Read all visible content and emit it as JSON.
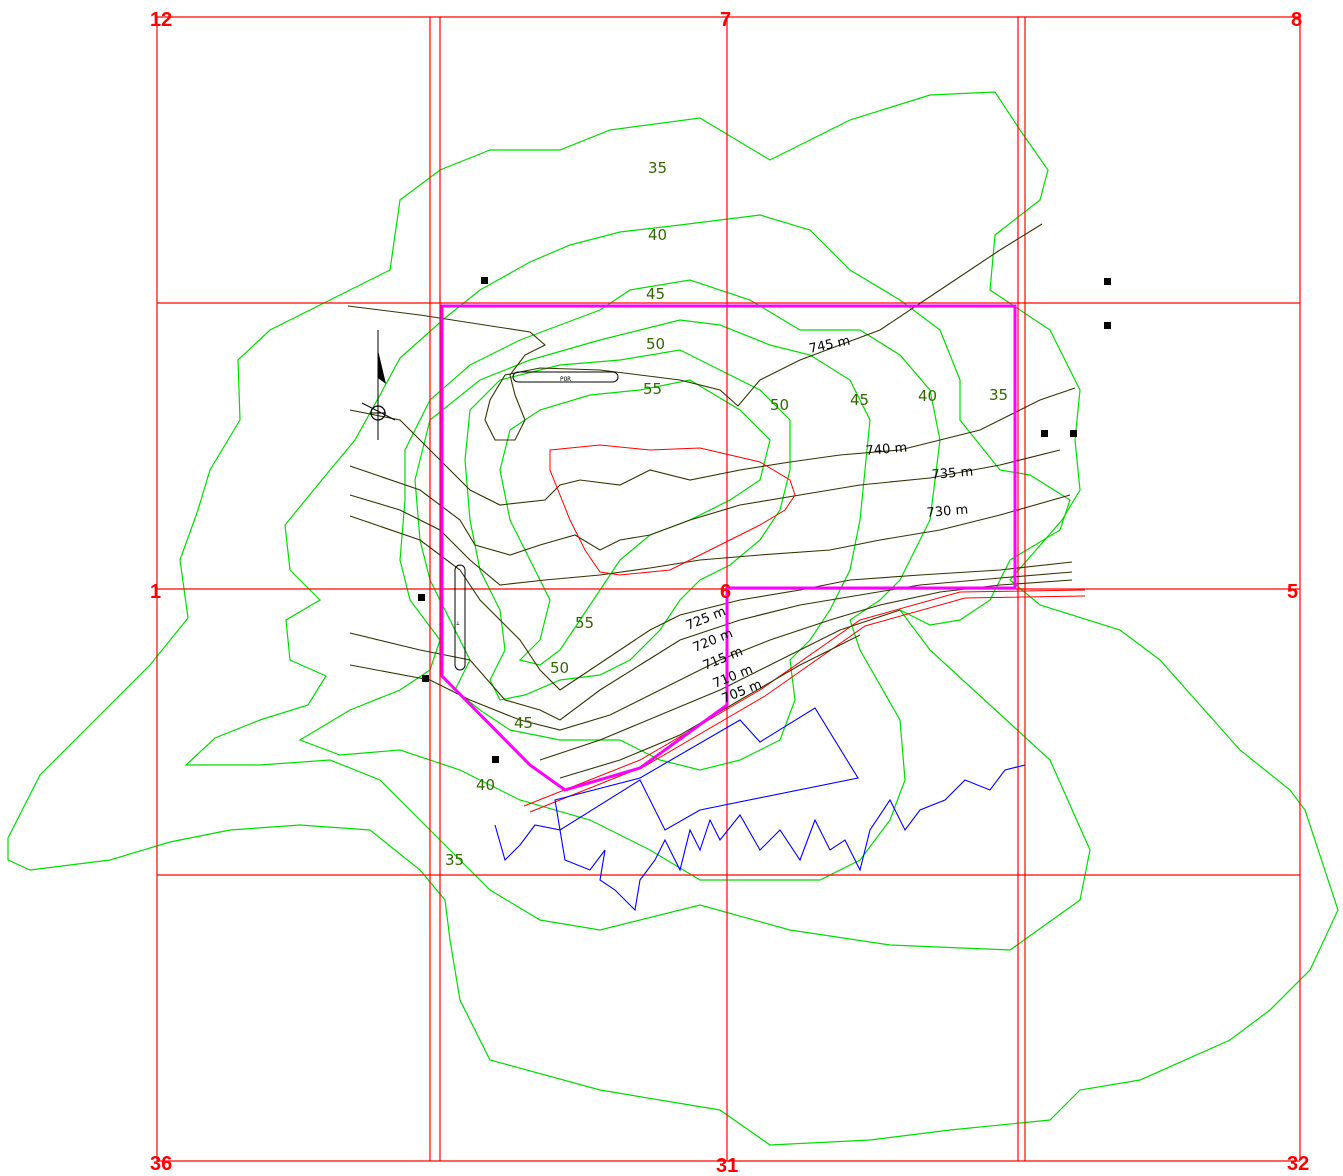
{
  "colors": {
    "section_grid": "#ff0000",
    "noise_contour": "#00dd00",
    "noise_label": "#336600",
    "site_boundary": "#ff00ff",
    "elevation_contour": "#333300",
    "watercourse": "#0000ff",
    "structure": "#000000"
  },
  "section_numbers": {
    "top_left": "12",
    "top_center": "7",
    "top_right": "8",
    "mid_left": "1",
    "center": "6",
    "mid_right": "5",
    "bottom_left": "36",
    "bottom_center": "31",
    "bottom_right": "32"
  },
  "noise_contour_labels": {
    "n35_top": "35",
    "n40_top": "40",
    "n45_top": "45",
    "n50_top": "50",
    "n55_top": "55",
    "n50_mid": "50",
    "n45_mid": "45",
    "n40_right": "40",
    "n35_right": "35",
    "n55_bottom": "55",
    "n50_bottom": "50",
    "n45_bottom": "45",
    "n40_bottom": "40",
    "n35_bottom": "35"
  },
  "elevation_labels": {
    "e745": "745 m",
    "e740": "740 m",
    "e735": "735 m",
    "e730": "730 m",
    "e725": "725 m",
    "e720": "720 m",
    "e715": "715 m",
    "e710": "710 m",
    "e705": "705 m"
  },
  "feature_label": "POR",
  "icons": {
    "north_arrow": "north-arrow-icon",
    "reference_point": "crosshair-target-icon",
    "receptor": "receptor-square-icon"
  }
}
